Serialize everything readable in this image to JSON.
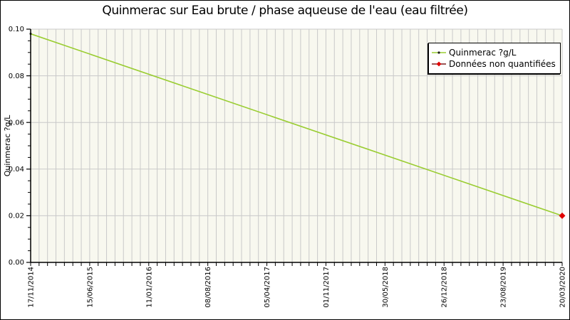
{
  "title": "Quinmerac sur Eau brute / phase aqueuse de l'eau (eau filtrée)",
  "y_axis": {
    "label": "Quinmerac ?g/L",
    "tick_labels": [
      "0.00",
      "0.02",
      "0.04",
      "0.06",
      "0.08",
      "0.10"
    ]
  },
  "x_axis": {
    "tick_labels": [
      "17/11/2014",
      "15/06/2015",
      "11/01/2016",
      "08/08/2016",
      "05/04/2017",
      "01/11/2017",
      "30/05/2018",
      "26/12/2018",
      "23/08/2019",
      "20/03/2020"
    ]
  },
  "legend": {
    "items": [
      {
        "label": "Quinmerac ?g/L",
        "marker": "dot-on-line",
        "line_color": "#9acd32",
        "marker_color": "#1a1a1a"
      },
      {
        "label": "Données non quantifiées",
        "marker": "diamond-on-line",
        "line_color": "#7a1e1e",
        "marker_color": "#e10000"
      }
    ]
  },
  "chart_data": {
    "type": "line",
    "title": "Quinmerac sur Eau brute / phase aqueuse de l'eau (eau filtrée)",
    "xlabel": "",
    "ylabel": "Quinmerac ?g/L",
    "ylim": [
      0,
      0.1
    ],
    "y_major_step": 0.02,
    "y_minor_step": 0.005,
    "x_minor_divisions_per_major": 7,
    "grid": true,
    "legend_position": "top-right",
    "x_tick_labels": [
      "17/11/2014",
      "15/06/2015",
      "11/01/2016",
      "08/08/2016",
      "05/04/2017",
      "01/11/2017",
      "30/05/2018",
      "26/12/2018",
      "23/08/2019",
      "20/03/2020"
    ],
    "series": [
      {
        "name": "Quinmerac ?g/L",
        "color": "#9acd32",
        "points": [
          {
            "date": "17/11/2014",
            "value": 0.098,
            "quantified": true
          },
          {
            "date": "20/03/2020",
            "value": 0.02,
            "quantified": false
          }
        ]
      }
    ]
  },
  "colors": {
    "plot_background": "#f8f8ef",
    "grid_line": "#c9c9c9",
    "axis": "#000000",
    "series_line": "#9acd32",
    "non_quantified_marker": "#e10000",
    "frame_border": "#000000"
  }
}
